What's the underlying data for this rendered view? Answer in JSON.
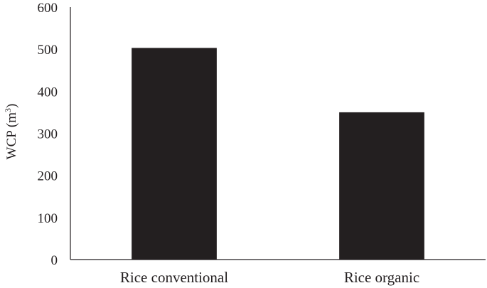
{
  "chart_data": {
    "type": "bar",
    "title": "",
    "xlabel": "",
    "ylabel": "WCP (m",
    "ylabel_sup": "3",
    "ylabel_end": ")",
    "categories": [
      "Rice conventional",
      "Rice organic"
    ],
    "values": [
      503,
      350
    ],
    "ylim": [
      0,
      600
    ],
    "yticks": [
      "0",
      "100",
      "200",
      "300",
      "400",
      "500",
      "600"
    ],
    "bar_color": "#231f20",
    "grid": false,
    "legend": "none"
  }
}
